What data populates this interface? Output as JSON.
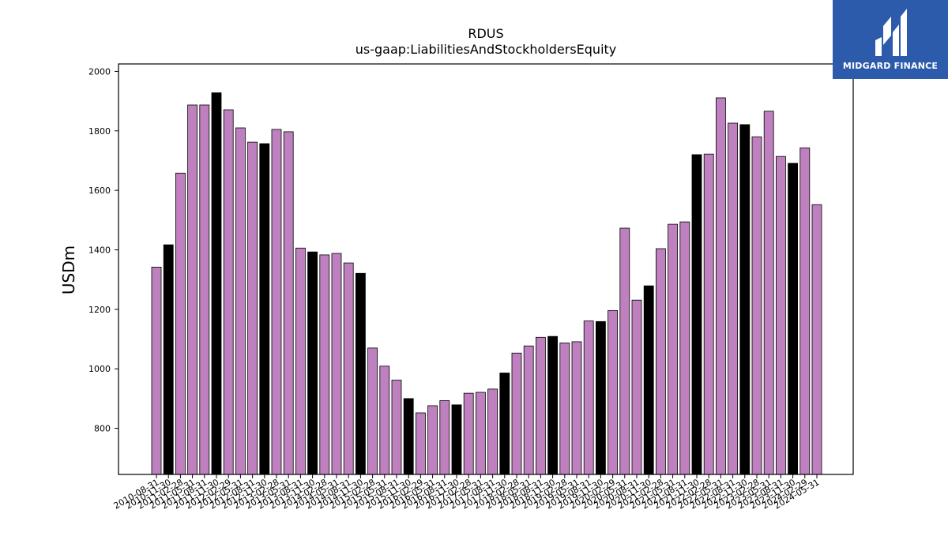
{
  "logo": {
    "text": "MIDGARD FINANCE",
    "bg_color": "#2d5bab"
  },
  "chart_data": {
    "type": "bar",
    "title": "RDUS",
    "subtitle": "us-gaap:LiabilitiesAndStockholdersEquity",
    "ylabel": "USDm",
    "xlabel": "",
    "ylim": [
      645,
      2025
    ],
    "yticks": [
      800,
      1000,
      1200,
      1400,
      1600,
      1800,
      2000
    ],
    "grid": false,
    "colors": {
      "regular": "#bf80bf",
      "fiscal_year_end": "#000000",
      "edge": "#000000"
    },
    "categories": [
      "2010-08-31",
      "2010-11-30",
      "2011-02-28",
      "2011-05-31",
      "2011-08-31",
      "2011-11-30",
      "2012-02-29",
      "2012-05-31",
      "2012-08-31",
      "2012-11-30",
      "2013-02-28",
      "2013-05-31",
      "2013-08-31",
      "2013-11-30",
      "2014-02-28",
      "2014-05-31",
      "2014-08-31",
      "2014-11-30",
      "2015-02-28",
      "2015-05-31",
      "2015-08-31",
      "2015-11-30",
      "2016-02-29",
      "2016-05-31",
      "2016-08-31",
      "2016-11-30",
      "2017-02-28",
      "2017-05-31",
      "2017-08-31",
      "2017-11-30",
      "2018-02-28",
      "2018-05-31",
      "2018-08-31",
      "2018-11-30",
      "2019-02-28",
      "2019-05-31",
      "2019-08-31",
      "2019-11-30",
      "2020-02-29",
      "2020-05-31",
      "2020-08-31",
      "2020-11-30",
      "2021-02-28",
      "2021-05-31",
      "2021-08-31",
      "2021-11-30",
      "2022-02-28",
      "2022-05-31",
      "2022-08-31",
      "2022-11-30",
      "2023-02-28",
      "2023-05-31",
      "2023-08-31",
      "2023-11-30",
      "2024-02-29",
      "2024-05-31"
    ],
    "values": [
      1342,
      1417,
      1658,
      1887,
      1887,
      1928,
      1871,
      1810,
      1762,
      1757,
      1805,
      1797,
      1406,
      1393,
      1383,
      1388,
      1356,
      1321,
      1070,
      1009,
      962,
      900,
      852,
      876,
      893,
      879,
      918,
      921,
      932,
      986,
      1053,
      1077,
      1106,
      1109,
      1087,
      1091,
      1161,
      1159,
      1196,
      1473,
      1231,
      1279,
      1404,
      1486,
      1494,
      1720,
      1722,
      1911,
      1826,
      1821,
      1780,
      1866,
      1714,
      1691,
      1743,
      1552
    ],
    "highlight": [
      false,
      true,
      false,
      false,
      false,
      true,
      false,
      false,
      false,
      true,
      false,
      false,
      false,
      true,
      false,
      false,
      false,
      true,
      false,
      false,
      false,
      true,
      false,
      false,
      false,
      true,
      false,
      false,
      false,
      true,
      false,
      false,
      false,
      true,
      false,
      false,
      false,
      true,
      false,
      false,
      false,
      true,
      false,
      false,
      false,
      true,
      false,
      false,
      false,
      true,
      false,
      false,
      false,
      true,
      false,
      false
    ]
  }
}
